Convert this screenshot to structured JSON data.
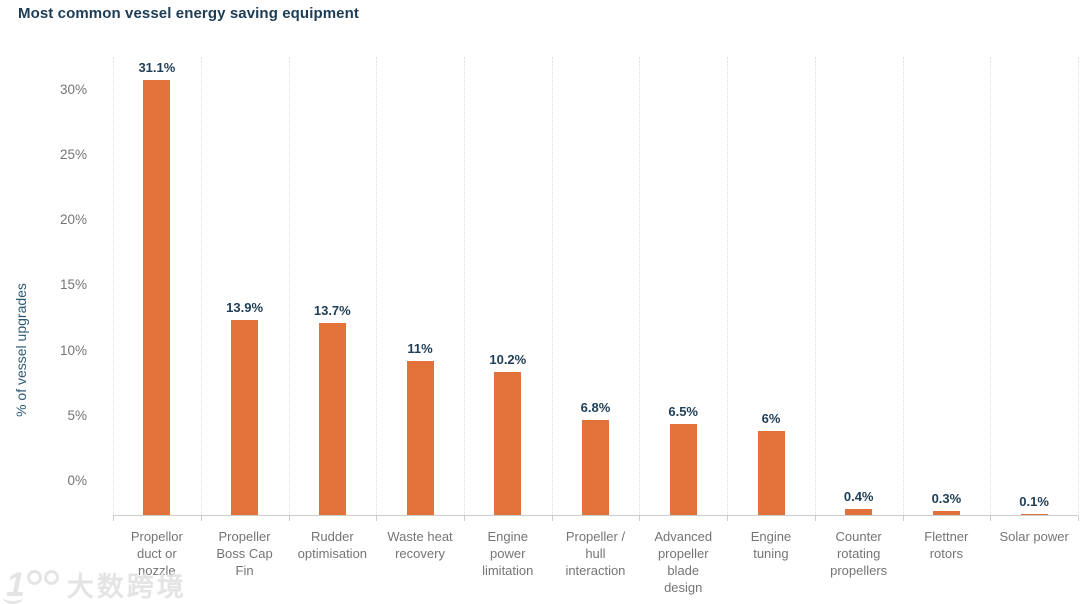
{
  "watermark": {
    "icon_text": "1",
    "brand_text": "大数跨境"
  },
  "chart_data": {
    "type": "bar",
    "title": "Most common vessel energy saving equipment",
    "xlabel": "",
    "ylabel": "% of vessel upgrades",
    "categories": [
      "Propellor duct or nozzle",
      "Propeller Boss Cap Fin",
      "Rudder optimisation",
      "Waste heat recovery",
      "Engine power limitation",
      "Propeller / hull interaction",
      "Advanced propeller blade design",
      "Engine tuning",
      "Counter rotating propellers",
      "Flettner rotors",
      "Solar power"
    ],
    "category_lines": [
      [
        "Propellor",
        "duct or",
        "nozzle"
      ],
      [
        "Propeller",
        "Boss Cap",
        "Fin"
      ],
      [
        "Rudder",
        "optimisation"
      ],
      [
        "Waste heat",
        "recovery"
      ],
      [
        "Engine",
        "power",
        "limitation"
      ],
      [
        "Propeller /",
        "hull",
        "interaction"
      ],
      [
        "Advanced",
        "propeller",
        "blade",
        "design"
      ],
      [
        "Engine",
        "tuning"
      ],
      [
        "Counter",
        "rotating",
        "propellers"
      ],
      [
        "Flettner",
        "rotors"
      ],
      [
        "Solar power"
      ]
    ],
    "values": [
      31.1,
      13.9,
      13.7,
      11,
      10.2,
      6.8,
      6.5,
      6,
      0.4,
      0.3,
      0.1
    ],
    "value_labels": [
      "31.1%",
      "13.9%",
      "13.7%",
      "11%",
      "10.2%",
      "6.8%",
      "6.5%",
      "6%",
      "0.4%",
      "0.3%",
      "0.1%"
    ],
    "y_tick_values": [
      0,
      5,
      10,
      15,
      20,
      25,
      30
    ],
    "y_tick_labels": [
      "0%",
      "5%",
      "10%",
      "15%",
      "20%",
      "25%",
      "30%"
    ],
    "ylim": [
      0,
      32.6
    ],
    "grid": {
      "vertical": "dotted",
      "horizontal": "none"
    },
    "legend_position": "none",
    "colors": {
      "bar": "#E2713A",
      "value_label": "#1E3D56",
      "chart_title": "#1D3C55",
      "y_axis_title": "#2E5A74",
      "axis_text": "#757575",
      "axis_line": "#CCCCCC",
      "gridline": "#DCDCDC",
      "watermark": "#E4E4E4",
      "background": "#FFFFFF"
    }
  }
}
